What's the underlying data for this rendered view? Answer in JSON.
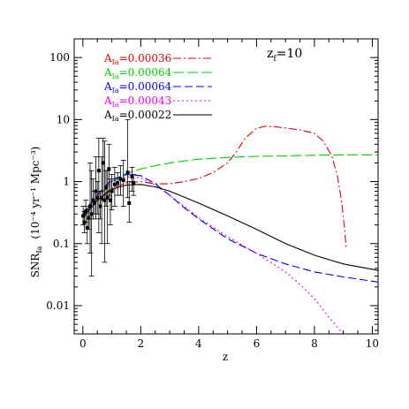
{
  "chart_data": {
    "type": "line",
    "xlabel": "z",
    "ylabel": "SNR",
    "ylabel_subscript": "Ia",
    "ylabel_units": "(10⁻⁴ yr⁻¹ Mpc⁻³)",
    "xlim": [
      -0.3,
      10.2
    ],
    "ylim": [
      0.0035,
      200
    ],
    "yscale": "log",
    "x_ticks": [
      0,
      2,
      4,
      6,
      8,
      10
    ],
    "x_tick_labels": [
      "0",
      "2",
      "4",
      "6",
      "8",
      "10"
    ],
    "y_ticks": [
      0.01,
      0.1,
      1,
      10,
      100
    ],
    "y_tick_labels": [
      "0.01",
      "0.1",
      "1",
      "10",
      "100"
    ],
    "annotation": {
      "text": "z",
      "subscript": "f",
      "suffix": "=10"
    },
    "legend_position": "top-left",
    "series": [
      {
        "legend_label": "A",
        "legend_sub": "Ia",
        "legend_value": "=0.00036",
        "color": "#e00000",
        "dash": "9,3,2,3",
        "x": [
          0,
          0.5,
          1.0,
          1.5,
          2.0,
          2.5,
          3.0,
          3.5,
          4.0,
          4.5,
          5.0,
          5.3,
          5.6,
          6.0,
          6.3,
          6.7,
          7.0,
          7.5,
          8.0,
          8.3,
          8.6,
          8.8,
          8.95,
          9.05,
          9.1
        ],
        "y": [
          0.27,
          0.5,
          0.78,
          0.95,
          1.0,
          0.92,
          0.92,
          1.0,
          1.12,
          1.4,
          2.0,
          3.0,
          5.0,
          7.2,
          7.8,
          7.6,
          7.3,
          6.8,
          6.0,
          4.5,
          2.6,
          1.2,
          0.45,
          0.16,
          0.08
        ]
      },
      {
        "legend_label": "A",
        "legend_sub": "Ia",
        "legend_value": "=0.00064",
        "color": "#00cc00",
        "dash": "12,4",
        "x": [
          0,
          0.5,
          1.0,
          1.5,
          2.0,
          2.5,
          3.0,
          3.5,
          4.0,
          5.0,
          6.0,
          7.0,
          8.0,
          9.0,
          10.2
        ],
        "y": [
          0.3,
          0.55,
          1.0,
          1.35,
          1.6,
          1.8,
          2.0,
          2.15,
          2.3,
          2.45,
          2.55,
          2.6,
          2.65,
          2.7,
          2.7
        ]
      },
      {
        "legend_label": "A",
        "legend_sub": "Ia",
        "legend_value": "=0.00064",
        "color": "#0000ee",
        "dash": "9,4",
        "x": [
          0,
          0.5,
          1.0,
          1.5,
          2.0,
          2.5,
          3.0,
          3.5,
          4.0,
          5.0,
          6.0,
          7.0,
          8.0,
          9.0,
          10.2
        ],
        "y": [
          0.3,
          0.62,
          1.08,
          1.3,
          1.25,
          0.93,
          0.6,
          0.38,
          0.25,
          0.12,
          0.07,
          0.047,
          0.035,
          0.029,
          0.024
        ]
      },
      {
        "legend_label": "A",
        "legend_sub": "Ia",
        "legend_value": "=0.00043",
        "color": "#ee00ee",
        "dash": "2,3",
        "x": [
          0,
          0.5,
          1.0,
          1.5,
          2.0,
          2.5,
          3.0,
          3.5,
          4.0,
          5.0,
          6.0,
          7.0,
          7.5,
          8.0,
          8.5,
          8.8,
          9.0
        ],
        "y": [
          0.28,
          0.58,
          1.0,
          1.2,
          1.15,
          0.88,
          0.6,
          0.4,
          0.26,
          0.13,
          0.07,
          0.035,
          0.022,
          0.013,
          0.0065,
          0.0045,
          0.0035
        ]
      },
      {
        "legend_label": "A",
        "legend_sub": "Ia",
        "legend_value": "=0.00022",
        "color": "#000000",
        "dash": "",
        "x": [
          0,
          0.5,
          1.0,
          1.5,
          2.0,
          2.5,
          3.0,
          4.0,
          5.0,
          6.0,
          7.0,
          8.0,
          9.0,
          10.2
        ],
        "y": [
          0.26,
          0.5,
          0.75,
          0.88,
          0.9,
          0.82,
          0.7,
          0.45,
          0.28,
          0.17,
          0.1,
          0.065,
          0.047,
          0.037
        ]
      }
    ],
    "observations": {
      "marker": "square",
      "points": [
        {
          "x": 0.01,
          "y": 0.28,
          "lo": 0.2,
          "hi": 0.4
        },
        {
          "x": 0.05,
          "y": 0.22,
          "lo": 0.15,
          "hi": 0.33
        },
        {
          "x": 0.1,
          "y": 0.33,
          "lo": 0.22,
          "hi": 0.5
        },
        {
          "x": 0.15,
          "y": 0.18,
          "lo": 0.1,
          "hi": 0.35
        },
        {
          "x": 0.2,
          "y": 0.26,
          "lo": 0.17,
          "hi": 0.4
        },
        {
          "x": 0.25,
          "y": 0.4,
          "lo": 0.07,
          "hi": 2.0
        },
        {
          "x": 0.3,
          "y": 0.3,
          "lo": 0.03,
          "hi": 1.5
        },
        {
          "x": 0.35,
          "y": 0.5,
          "lo": 0.25,
          "hi": 1.1
        },
        {
          "x": 0.4,
          "y": 0.45,
          "lo": 0.3,
          "hi": 0.7
        },
        {
          "x": 0.45,
          "y": 0.7,
          "lo": 0.25,
          "hi": 2.5
        },
        {
          "x": 0.5,
          "y": 0.55,
          "lo": 0.3,
          "hi": 1.0
        },
        {
          "x": 0.55,
          "y": 1.5,
          "lo": 0.15,
          "hi": 5.0
        },
        {
          "x": 0.6,
          "y": 0.4,
          "lo": 0.25,
          "hi": 0.7
        },
        {
          "x": 0.65,
          "y": 0.55,
          "lo": 0.1,
          "hi": 2.5
        },
        {
          "x": 0.7,
          "y": 2.0,
          "lo": 0.5,
          "hi": 5.0
        },
        {
          "x": 0.75,
          "y": 0.5,
          "lo": 0.05,
          "hi": 4.5
        },
        {
          "x": 0.8,
          "y": 0.8,
          "lo": 0.4,
          "hi": 1.5
        },
        {
          "x": 0.85,
          "y": 0.55,
          "lo": 0.1,
          "hi": 1.5
        },
        {
          "x": 0.9,
          "y": 1.6,
          "lo": 0.6,
          "hi": 4.0
        },
        {
          "x": 0.95,
          "y": 0.5,
          "lo": 0.2,
          "hi": 1.1
        },
        {
          "x": 1.0,
          "y": 0.7,
          "lo": 0.35,
          "hi": 1.3
        },
        {
          "x": 1.1,
          "y": 0.9,
          "lo": 0.4,
          "hi": 1.7
        },
        {
          "x": 1.2,
          "y": 0.95,
          "lo": 0.6,
          "hi": 1.4
        },
        {
          "x": 1.3,
          "y": 1.1,
          "lo": 0.6,
          "hi": 1.8
        },
        {
          "x": 1.4,
          "y": 1.05,
          "lo": 0.4,
          "hi": 2.2
        },
        {
          "x": 1.55,
          "y": 1.4,
          "lo": 0.55,
          "hi": 10.0
        },
        {
          "x": 1.6,
          "y": 0.45,
          "lo": 0.22,
          "hi": 1.0
        },
        {
          "x": 1.7,
          "y": 1.2,
          "lo": 0.7,
          "hi": 1.7
        },
        {
          "x": 1.75,
          "y": 0.95,
          "lo": 0.6,
          "hi": 1.3
        }
      ]
    }
  }
}
